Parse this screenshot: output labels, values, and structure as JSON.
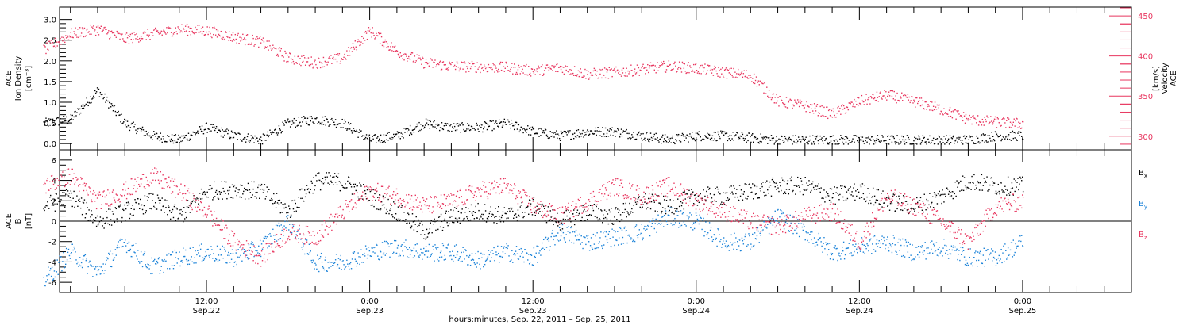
{
  "chart_data": [
    {
      "type": "scatter",
      "panel": "ion-density-velocity",
      "left_axis": {
        "title_lines": [
          "ACE",
          "Ion Density",
          "[cm⁻³]"
        ],
        "ylim": [
          -0.15,
          3.3
        ],
        "ticks": [
          "0.0",
          "0.5",
          "1.0",
          "1.5",
          "2.0",
          "2.5",
          "3.0"
        ],
        "color": "#000000"
      },
      "right_axis": {
        "title_lines": [
          "ACE",
          "Velocity",
          "[km/s]"
        ],
        "ylim": [
          283,
          461
        ],
        "ticks": [
          "300",
          "350",
          "400",
          "450"
        ],
        "color": "#e8365f"
      },
      "series": [
        {
          "axis": "left",
          "color": "#000000",
          "time_hours": [
            0,
            2,
            4,
            6,
            8,
            10,
            12,
            14,
            16,
            18,
            20,
            22,
            24,
            26,
            28,
            30,
            32,
            34,
            36,
            38,
            40,
            42,
            44,
            46,
            48,
            50,
            52,
            54,
            56,
            58,
            60,
            62,
            64,
            66,
            68,
            70,
            72
          ],
          "values": [
            0.5,
            0.6,
            1.3,
            0.5,
            0.2,
            0.1,
            0.4,
            0.2,
            0.1,
            0.5,
            0.6,
            0.5,
            0.1,
            0.2,
            0.5,
            0.4,
            0.4,
            0.5,
            0.3,
            0.2,
            0.3,
            0.3,
            0.2,
            0.1,
            0.2,
            0.2,
            0.15,
            0.1,
            0.1,
            0.1,
            0.1,
            0.1,
            0.1,
            0.1,
            0.1,
            0.2,
            0.2
          ]
        },
        {
          "axis": "right",
          "color": "#e8365f",
          "time_hours": [
            0,
            2,
            4,
            6,
            8,
            10,
            12,
            14,
            16,
            18,
            20,
            22,
            24,
            26,
            28,
            30,
            32,
            34,
            36,
            38,
            40,
            42,
            44,
            46,
            48,
            50,
            52,
            54,
            56,
            58,
            60,
            62,
            64,
            66,
            68,
            70,
            72
          ],
          "values": [
            408,
            428,
            434,
            422,
            428,
            434,
            432,
            424,
            418,
            398,
            392,
            398,
            432,
            406,
            392,
            388,
            387,
            386,
            382,
            386,
            378,
            380,
            384,
            388,
            385,
            380,
            376,
            344,
            338,
            328,
            344,
            352,
            344,
            334,
            322,
            318,
            316
          ]
        }
      ]
    },
    {
      "type": "scatter",
      "panel": "magnetic-field",
      "left_axis": {
        "title_lines": [
          "ACE",
          "B",
          "[nT]"
        ],
        "ylim": [
          -7,
          7
        ],
        "ticks": [
          "-6",
          "-4",
          "-2",
          "0",
          "2",
          "4",
          "6"
        ],
        "color": "#000000"
      },
      "zero_line": true,
      "legend": [
        "Bx",
        "By",
        "Bz"
      ],
      "legend_placement": "right",
      "series": [
        {
          "name": "Bx",
          "color": "#000000",
          "time_hours": [
            0,
            2,
            4,
            6,
            8,
            10,
            12,
            14,
            16,
            18,
            20,
            22,
            24,
            26,
            28,
            30,
            32,
            34,
            36,
            38,
            40,
            42,
            44,
            46,
            48,
            50,
            52,
            54,
            56,
            58,
            60,
            62,
            64,
            66,
            68,
            70,
            72
          ],
          "values": [
            1.5,
            2.5,
            0.0,
            1.0,
            2.0,
            0.5,
            3.0,
            3.2,
            3.0,
            1.0,
            4.0,
            3.9,
            2.5,
            1.0,
            -1.0,
            0.5,
            1.0,
            0.5,
            1.5,
            0.0,
            1.0,
            0.5,
            2.0,
            1.5,
            2.5,
            2.5,
            3.0,
            3.5,
            3.5,
            2.5,
            3.0,
            2.0,
            1.5,
            2.5,
            4.0,
            3.5,
            3.5
          ]
        },
        {
          "name": "By",
          "color": "#1a82d8",
          "time_hours": [
            0,
            2,
            4,
            6,
            8,
            10,
            12,
            14,
            16,
            18,
            20,
            22,
            24,
            26,
            28,
            30,
            32,
            34,
            36,
            38,
            40,
            42,
            44,
            46,
            48,
            50,
            52,
            54,
            56,
            58,
            60,
            62,
            64,
            66,
            68,
            70,
            72
          ],
          "values": [
            -5.8,
            -3.0,
            -5.0,
            -2.0,
            -4.5,
            -3.5,
            -3.0,
            -3.5,
            -2.5,
            0.0,
            -4.0,
            -4.0,
            -3.0,
            -2.5,
            -3.0,
            -3.0,
            -3.8,
            -3.0,
            -3.5,
            -1.0,
            -2.0,
            -1.5,
            -1.0,
            0.5,
            0.0,
            -2.0,
            -2.0,
            0.5,
            -1.0,
            -3.0,
            -2.5,
            -2.0,
            -3.0,
            -2.5,
            -3.5,
            -3.5,
            -2.0
          ]
        },
        {
          "name": "Bz",
          "color": "#e8365f",
          "time_hours": [
            0,
            2,
            4,
            6,
            8,
            10,
            12,
            14,
            16,
            18,
            20,
            22,
            24,
            26,
            28,
            30,
            32,
            34,
            36,
            38,
            40,
            42,
            44,
            46,
            48,
            50,
            52,
            54,
            56,
            58,
            60,
            62,
            64,
            66,
            68,
            70,
            72
          ],
          "values": [
            3.5,
            4.5,
            2.0,
            3.0,
            4.5,
            3.0,
            1.0,
            -2.0,
            -3.5,
            -1.0,
            -1.5,
            1.0,
            3.0,
            2.5,
            1.5,
            2.0,
            3.0,
            3.5,
            1.5,
            0.5,
            2.0,
            3.5,
            2.5,
            3.5,
            2.0,
            1.0,
            0.0,
            -0.5,
            0.5,
            1.0,
            -2.0,
            2.5,
            1.5,
            0.0,
            -2.0,
            1.5,
            2.0
          ]
        }
      ]
    }
  ],
  "x_axis": {
    "major_ticks": [
      {
        "hours": 12,
        "time": "12:00",
        "date": "Sep.22"
      },
      {
        "hours": 24,
        "time": "0:00",
        "date": "Sep.23"
      },
      {
        "hours": 36,
        "time": "12:00",
        "date": "Sep.23"
      },
      {
        "hours": 48,
        "time": "0:00",
        "date": "Sep.24"
      },
      {
        "hours": 60,
        "time": "12:00",
        "date": "Sep.24"
      },
      {
        "hours": 72,
        "time": "0:00",
        "date": "Sep.25"
      }
    ],
    "xlim_hours": [
      1.2,
      80
    ],
    "title": "hours:minutes, Sep. 22, 2011 – Sep. 25, 2011"
  },
  "legend_items": {
    "bx": {
      "base": "B",
      "sub": "x",
      "color": "#000000"
    },
    "by": {
      "base": "B",
      "sub": "y",
      "color": "#1a82d8"
    },
    "bz": {
      "base": "B",
      "sub": "z",
      "color": "#e8365f"
    }
  }
}
